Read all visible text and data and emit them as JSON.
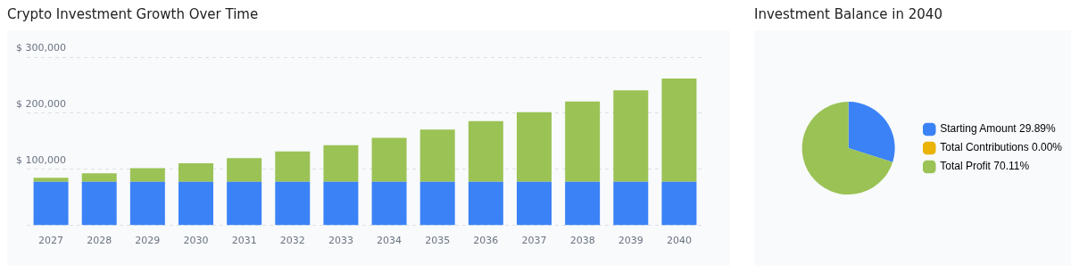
{
  "chart_data": [
    {
      "type": "bar",
      "title": "Crypto Investment Growth Over Time",
      "stacked": true,
      "grid": "y",
      "legend": false,
      "tick_labels": "xy",
      "categories": [
        "2027",
        "2028",
        "2029",
        "2030",
        "2031",
        "2032",
        "2033",
        "2034",
        "2035",
        "2036",
        "2037",
        "2038",
        "2039",
        "2040"
      ],
      "series": [
        {
          "color": "#3b82f6",
          "values": [
            78000,
            78000,
            78000,
            78000,
            78000,
            78000,
            78000,
            78000,
            78000,
            78000,
            78000,
            78000,
            78000,
            78000
          ]
        },
        {
          "color": "#9bc255",
          "values": [
            7000,
            15000,
            24000,
            33000,
            42000,
            54000,
            65000,
            78000,
            93000,
            108000,
            124000,
            143000,
            163000,
            184000
          ]
        }
      ],
      "ylim": [
        0,
        300000
      ],
      "yticks": [
        {
          "value": 0,
          "label": null
        },
        {
          "value": 100000,
          "label": "$ 100,000"
        },
        {
          "value": 200000,
          "label": "$ 200,000"
        },
        {
          "value": 300000,
          "label": "$ 300,000"
        }
      ]
    },
    {
      "type": "pie",
      "title": "Investment Balance in 2040",
      "legend": "right",
      "categories": [
        "Starting Amount",
        "Total Contributions",
        "Total Profit"
      ],
      "values": [
        29.89,
        0.0,
        70.11
      ],
      "value_labels": [
        "29.89%",
        "0.00%",
        "70.11%"
      ],
      "colors": [
        "#3b82f6",
        "#eab308",
        "#9bc255"
      ]
    }
  ]
}
